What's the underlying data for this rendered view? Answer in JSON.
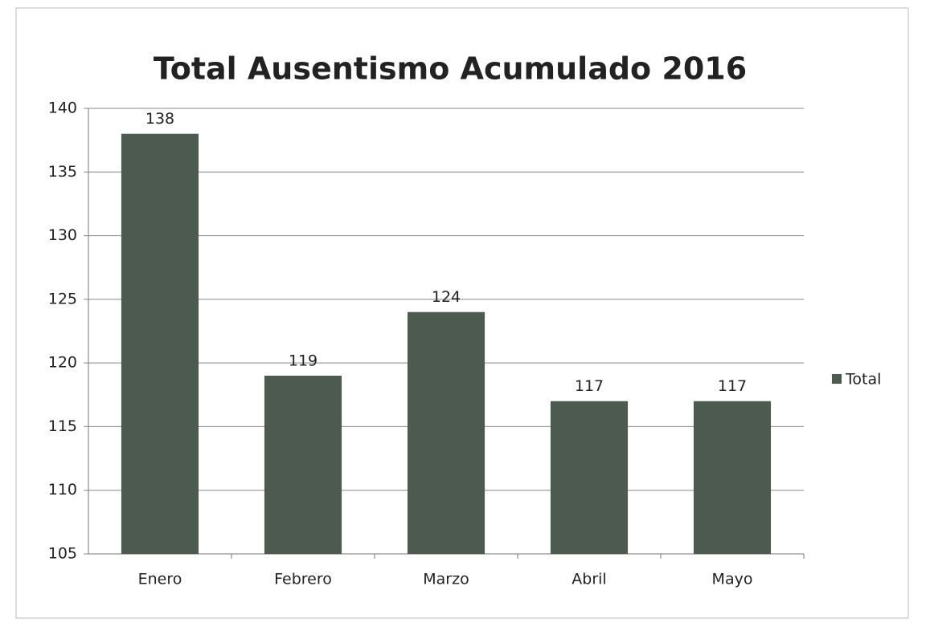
{
  "chart_data": {
    "type": "bar",
    "title": "Total Ausentismo Acumulado 2016",
    "categories": [
      "Enero",
      "Febrero",
      "Marzo",
      "Abril",
      "Mayo"
    ],
    "series": [
      {
        "name": "Total",
        "color": "#4d5a4f",
        "values": [
          138,
          119,
          124,
          117,
          117
        ]
      }
    ],
    "ylim": [
      105,
      140
    ],
    "yticks": [
      105,
      110,
      115,
      120,
      125,
      130,
      135,
      140
    ],
    "grid": true,
    "legend": "right"
  }
}
